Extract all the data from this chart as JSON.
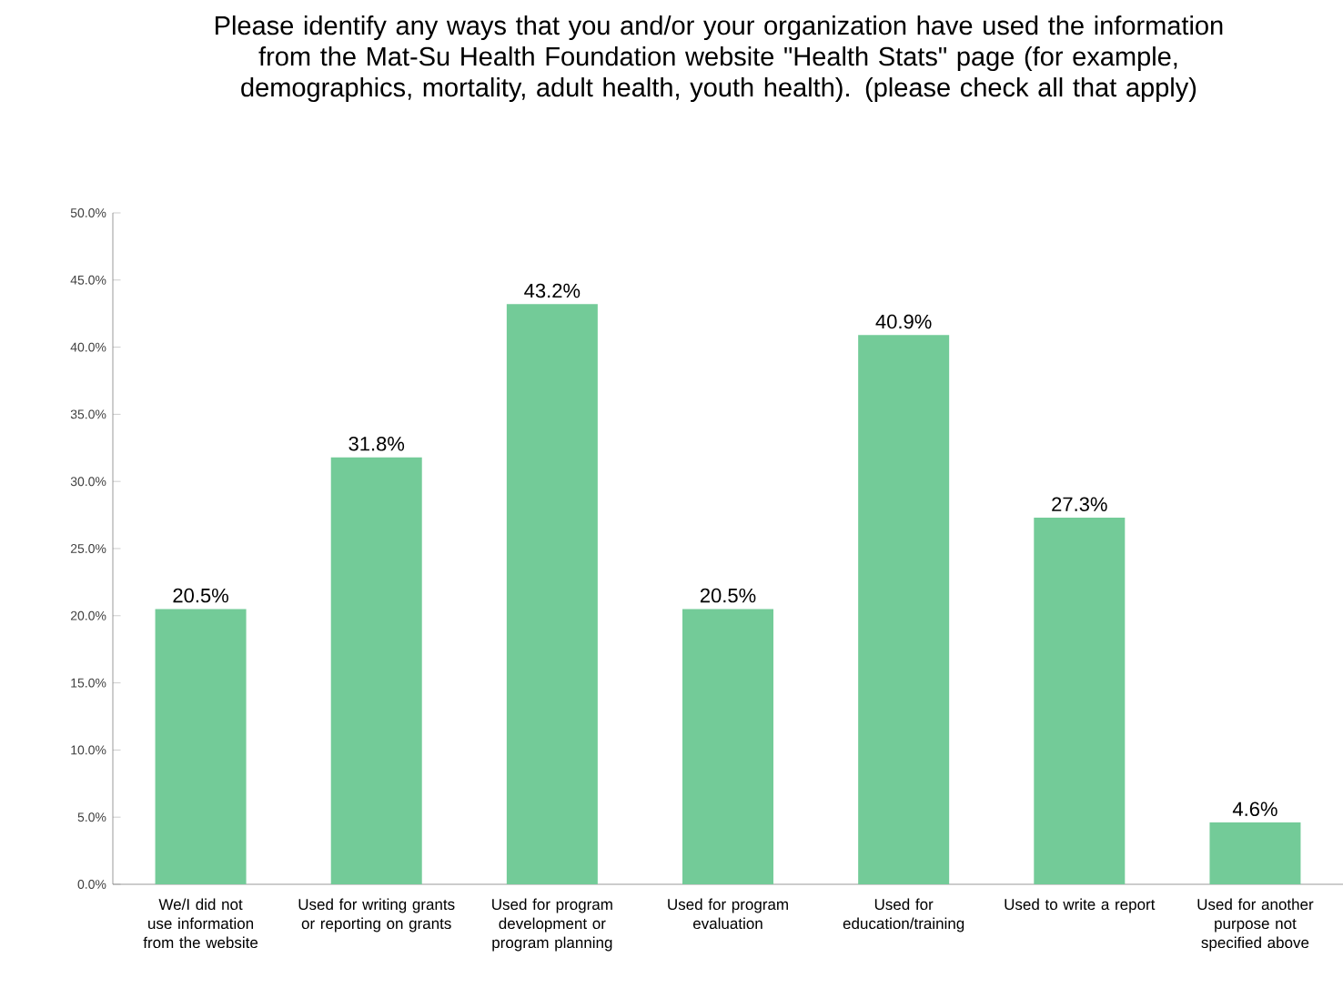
{
  "chart_data": {
    "type": "bar",
    "title": "Please identify any ways that you and/or your organization have used the information from the Mat-Su Health Foundation website \"Health Stats\" page (for example, demographics, mortality, adult health, youth health). (please check all that apply)",
    "categories": [
      "We/I did not use information from the website",
      "Used for writing grants or reporting on grants",
      "Used for program development or program planning",
      "Used for program evaluation",
      "Used for education/training",
      "Used to write a report",
      "Used for another purpose not specified above"
    ],
    "values": [
      20.5,
      31.8,
      43.2,
      20.5,
      40.9,
      27.3,
      4.6
    ],
    "value_labels": [
      "20.5%",
      "31.8%",
      "43.2%",
      "20.5%",
      "40.9%",
      "27.3%",
      "4.6%"
    ],
    "color": "#73cb98",
    "ylim": [
      0,
      50
    ],
    "yticks": [
      {
        "value": 0,
        "label": "0.0%"
      },
      {
        "value": 5,
        "label": "5.0%"
      },
      {
        "value": 10,
        "label": "10.0%"
      },
      {
        "value": 15,
        "label": "15.0%"
      },
      {
        "value": 20,
        "label": "20.0%"
      },
      {
        "value": 25,
        "label": "25.0%"
      },
      {
        "value": 30,
        "label": "30.0%"
      },
      {
        "value": 35,
        "label": "35.0%"
      },
      {
        "value": 40,
        "label": "40.0%"
      },
      {
        "value": 45,
        "label": "45.0%"
      },
      {
        "value": 50,
        "label": "50.0%"
      }
    ],
    "grid": false
  }
}
